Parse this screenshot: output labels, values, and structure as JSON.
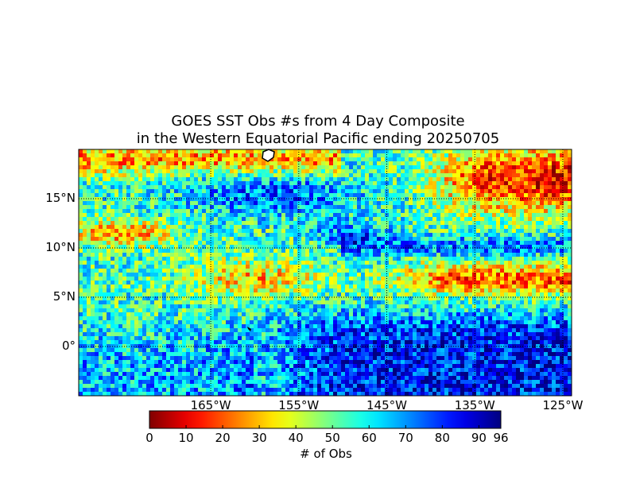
{
  "title": {
    "line1": "GOES SST Obs #s from 4 Day Composite",
    "line2": "in the Western Equatorial Pacific ending 20250705"
  },
  "map": {
    "lon_range": [
      -180,
      -124
    ],
    "lat_range": [
      -5,
      20
    ],
    "lon_ticks": [
      {
        "value": -165,
        "label": "165°W"
      },
      {
        "value": -155,
        "label": "155°W"
      },
      {
        "value": -145,
        "label": "145°W"
      },
      {
        "value": -135,
        "label": "135°W"
      },
      {
        "value": -125,
        "label": "125°W"
      }
    ],
    "lat_ticks": [
      {
        "value": 15,
        "label": "15°N"
      },
      {
        "value": 10,
        "label": "10°N"
      },
      {
        "value": 5,
        "label": "5°N"
      },
      {
        "value": 0,
        "label": "0°"
      }
    ],
    "gridlines": "dotted",
    "land_color": "#ffffff"
  },
  "colorbar": {
    "label": "# of Obs",
    "range": [
      0,
      96
    ],
    "colormap": "jet_reversed",
    "ticks": [
      "0",
      "10",
      "20",
      "30",
      "40",
      "50",
      "60",
      "70",
      "80",
      "90",
      "96"
    ],
    "tick_values": [
      0,
      10,
      20,
      30,
      40,
      50,
      60,
      70,
      80,
      90,
      96
    ]
  },
  "chart_data": {
    "type": "heatmap",
    "title": "GOES SST Obs #s from 4 Day Composite in the Western Equatorial Pacific ending 20250705",
    "xlabel": "",
    "ylabel": "",
    "colorbar_label": "# of Obs",
    "value_range": [
      0,
      96
    ],
    "regions": [
      {
        "lon": [
          -124,
          -136
        ],
        "lat": [
          12,
          20
        ],
        "value": 10
      },
      {
        "lon": [
          -160,
          -155
        ],
        "lat": [
          13,
          17
        ],
        "value": 85
      },
      {
        "lon": [
          -152,
          -147
        ],
        "lat": [
          10,
          13
        ],
        "value": 88
      },
      {
        "lon": [
          -180,
          -168
        ],
        "lat": [
          10,
          13
        ],
        "value": 18
      },
      {
        "lon": [
          -142,
          -124
        ],
        "lat": [
          5,
          9
        ],
        "value": 15
      },
      {
        "lon": [
          -155,
          -124
        ],
        "lat": [
          -5,
          4
        ],
        "value": 85
      },
      {
        "lon": [
          -180,
          -160
        ],
        "lat": [
          -5,
          2
        ],
        "value": 70
      },
      {
        "lon": [
          -170,
          -155
        ],
        "lat": [
          5,
          10
        ],
        "value": 30
      }
    ]
  }
}
